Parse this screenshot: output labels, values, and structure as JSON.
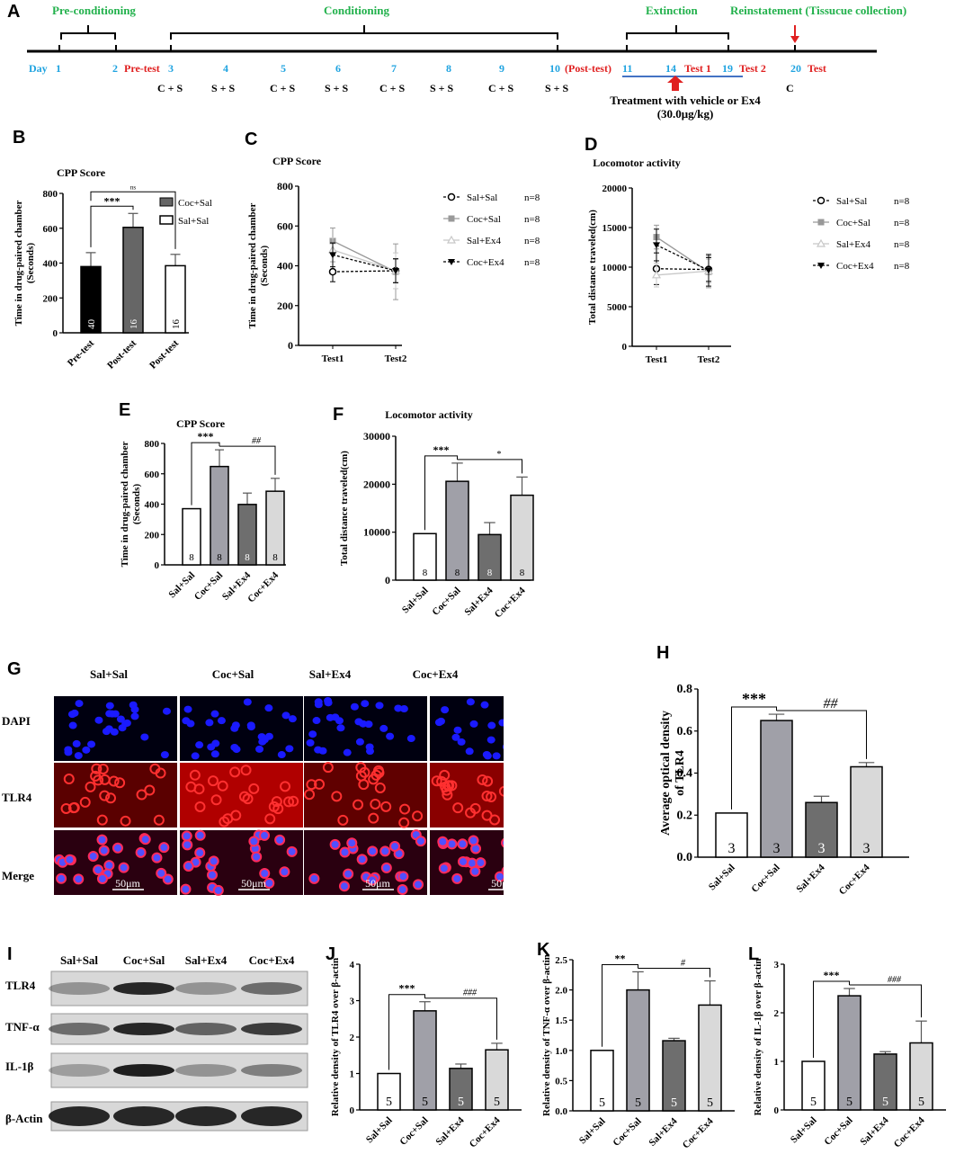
{
  "panels": {
    "A": "A",
    "B": "B",
    "C": "C",
    "D": "D",
    "E": "E",
    "F": "F",
    "G": "G",
    "H": "H",
    "I": "I",
    "J": "J",
    "K": "K",
    "L": "L"
  },
  "timeline": {
    "phases": [
      {
        "id": "pre",
        "label": "Pre-conditioning"
      },
      {
        "id": "cond",
        "label": "Conditioning"
      },
      {
        "id": "ext",
        "label": "Extinction"
      },
      {
        "id": "reinst",
        "label": "Reinstatement (Tissucue collection)"
      }
    ],
    "day_label": "Day",
    "days": [
      "1",
      "2",
      "3",
      "4",
      "5",
      "6",
      "7",
      "8",
      "9",
      "10",
      "11",
      "14",
      "19",
      "20"
    ],
    "events": {
      "pretest": "Pre-test",
      "posttest": "(Post-test)",
      "test1": "Test 1",
      "test2": "Test 2",
      "test": "Test"
    },
    "pairings": [
      "C + S",
      "S + S",
      "C + S",
      "S + S",
      "C + S",
      "S + S",
      "C + S",
      "S + S"
    ],
    "day20_pair": "C",
    "treatment_line1": "Treatment with vehicle or Ex4",
    "treatment_line2": "(30.0μg/kg)",
    "colors": {
      "green": "#22b14c",
      "blue": "#1fa3e0",
      "red": "#e02020",
      "bar": "#4472c4"
    }
  },
  "images": {
    "G": {
      "columns": [
        "Sal+Sal",
        "Coc+Sal",
        "Sal+Ex4",
        "Coc+Ex4"
      ],
      "rows": [
        "DAPI",
        "TLR4",
        "Merge"
      ],
      "scalebar": "50μm"
    },
    "I": {
      "columns": [
        "Sal+Sal",
        "Coc+Sal",
        "Sal+Ex4",
        "Coc+Ex4"
      ],
      "rows": [
        "TLR4",
        "TNF-α",
        "IL-1β",
        "β-Actin"
      ]
    }
  },
  "chart_data": [
    {
      "panel": "B",
      "type": "bar",
      "title": "CPP Score",
      "ylabel": "Time in drug-paired chamber (Seconds)",
      "categories": [
        "Pre-test",
        "Post-test",
        "Post-test"
      ],
      "values": [
        380,
        605,
        385
      ],
      "errors": [
        80,
        80,
        65
      ],
      "n": [
        "40",
        "16",
        "16"
      ],
      "colors": [
        "#000000",
        "#666666",
        "#ffffff"
      ],
      "ylim": [
        0,
        800
      ],
      "yticks": [
        0,
        200,
        400,
        600,
        800
      ],
      "legend": [
        "Coc+Sal",
        "Sal+Sal"
      ],
      "sig": [
        "***",
        "ns"
      ]
    },
    {
      "panel": "C",
      "type": "line",
      "title": "CPP Score",
      "ylabel": "Time in drug-paired chamber (Seconds)",
      "x": [
        "Test1",
        "Test2"
      ],
      "ylim": [
        0,
        800
      ],
      "yticks": [
        0,
        200,
        400,
        600,
        800
      ],
      "series": [
        {
          "name": "Sal+Sal",
          "n": "n=8",
          "values": [
            370,
            375
          ],
          "errors": [
            50,
            60
          ]
        },
        {
          "name": "Coc+Sal",
          "n": "n=8",
          "values": [
            525,
            370
          ],
          "errors": [
            65,
            140
          ]
        },
        {
          "name": "Sal+Ex4",
          "n": "n=8",
          "values": [
            480,
            375
          ],
          "errors": [
            60,
            90
          ]
        },
        {
          "name": "Coc+Ex4",
          "n": "n=8",
          "values": [
            455,
            375
          ],
          "errors": [
            60,
            60
          ]
        }
      ]
    },
    {
      "panel": "D",
      "type": "line",
      "title": "Locomotor activity",
      "ylabel": "Total distance traveled(cm)",
      "x": [
        "Test1",
        "Test2"
      ],
      "ylim": [
        0,
        20000
      ],
      "yticks": [
        0,
        5000,
        10000,
        15000,
        20000
      ],
      "series": [
        {
          "name": "Sal+Sal",
          "n": "n=8",
          "values": [
            9800,
            9700
          ],
          "errors": [
            2000,
            1500
          ]
        },
        {
          "name": "Coc+Sal",
          "n": "n=8",
          "values": [
            13800,
            9400
          ],
          "errors": [
            1500,
            2000
          ]
        },
        {
          "name": "Sal+Ex4",
          "n": "n=8",
          "values": [
            9000,
            9500
          ],
          "errors": [
            1500,
            1500
          ]
        },
        {
          "name": "Coc+Ex4",
          "n": "n=8",
          "values": [
            12800,
            9600
          ],
          "errors": [
            2000,
            2000
          ]
        }
      ]
    },
    {
      "panel": "E",
      "type": "bar",
      "title": "CPP Score",
      "ylabel": "Time in drug-paired chamber (Seconds)",
      "categories": [
        "Sal+Sal",
        "Coc+Sal",
        "Sal+Ex4",
        "Coc+Ex4"
      ],
      "values": [
        370,
        648,
        398,
        485
      ],
      "errors": [
        0,
        110,
        75,
        85
      ],
      "n": [
        "8",
        "8",
        "8",
        "8"
      ],
      "colors": [
        "#ffffff",
        "#a0a0a8",
        "#6e6e6e",
        "#d9d9d9"
      ],
      "ylim": [
        0,
        800
      ],
      "yticks": [
        0,
        200,
        400,
        600,
        800
      ],
      "sig": [
        "***",
        "##"
      ]
    },
    {
      "panel": "F",
      "type": "bar",
      "title": "Locomotor activity",
      "ylabel": "Total distance traveled(cm)",
      "categories": [
        "Sal+Sal",
        "Coc+Sal",
        "Sal+Ex4",
        "Coc+Ex4"
      ],
      "values": [
        9700,
        20600,
        9500,
        17700
      ],
      "errors": [
        0,
        3800,
        2500,
        3800
      ],
      "n": [
        "8",
        "8",
        "8",
        "8"
      ],
      "colors": [
        "#ffffff",
        "#a0a0a8",
        "#6e6e6e",
        "#d9d9d9"
      ],
      "ylim": [
        0,
        30000
      ],
      "yticks": [
        0,
        10000,
        20000,
        30000
      ],
      "sig": [
        "***",
        "*"
      ]
    },
    {
      "panel": "H",
      "type": "bar",
      "title": "",
      "ylabel": "Average optical density of TLR4",
      "categories": [
        "Sal+Sal",
        "Coc+Sal",
        "Sal+Ex4",
        "Coc+Ex4"
      ],
      "values": [
        0.21,
        0.65,
        0.26,
        0.43
      ],
      "errors": [
        0,
        0.03,
        0.03,
        0.02
      ],
      "n": [
        "3",
        "3",
        "3",
        "3"
      ],
      "colors": [
        "#ffffff",
        "#a0a0a8",
        "#6e6e6e",
        "#d9d9d9"
      ],
      "ylim": [
        0,
        0.8
      ],
      "yticks": [
        "0.0",
        "0.2",
        "0.4",
        "0.6",
        "0.8"
      ],
      "sig": [
        "***",
        "##"
      ]
    },
    {
      "panel": "J",
      "type": "bar",
      "title": "",
      "ylabel": "Relative density of TLR4 over β-actin",
      "categories": [
        "Sal+Sal",
        "Coc+Sal",
        "Sal+Ex4",
        "Coc+Ex4"
      ],
      "values": [
        1.0,
        2.72,
        1.14,
        1.65
      ],
      "errors": [
        0,
        0.25,
        0.12,
        0.18
      ],
      "n": [
        "5",
        "5",
        "5",
        "5"
      ],
      "colors": [
        "#ffffff",
        "#a0a0a8",
        "#6e6e6e",
        "#d9d9d9"
      ],
      "ylim": [
        0,
        4
      ],
      "yticks": [
        "0",
        "1",
        "2",
        "3",
        "4"
      ],
      "sig": [
        "***",
        "###"
      ]
    },
    {
      "panel": "K",
      "type": "bar",
      "title": "",
      "ylabel": "Relative density of TNF-α over β-actin",
      "categories": [
        "Sal+Sal",
        "Coc+Sal",
        "Sal+Ex4",
        "Coc+Ex4"
      ],
      "values": [
        1.0,
        2.0,
        1.16,
        1.75
      ],
      "errors": [
        0,
        0.3,
        0.04,
        0.4
      ],
      "n": [
        "5",
        "5",
        "5",
        "5"
      ],
      "colors": [
        "#ffffff",
        "#a0a0a8",
        "#6e6e6e",
        "#d9d9d9"
      ],
      "ylim": [
        0,
        2.5
      ],
      "yticks": [
        "0.0",
        "0.5",
        "1.0",
        "1.5",
        "2.0",
        "2.5"
      ],
      "sig": [
        "**",
        "#"
      ]
    },
    {
      "panel": "L",
      "type": "bar",
      "title": "",
      "ylabel": "Relative density of IL-1β over β-actin",
      "categories": [
        "Sal+Sal",
        "Coc+Sal",
        "Sal+Ex4",
        "Coc+Ex4"
      ],
      "values": [
        1.0,
        2.35,
        1.15,
        1.38
      ],
      "errors": [
        0,
        0.15,
        0.05,
        0.45
      ],
      "n": [
        "5",
        "5",
        "5",
        "5"
      ],
      "colors": [
        "#ffffff",
        "#a0a0a8",
        "#6e6e6e",
        "#d9d9d9"
      ],
      "ylim": [
        0,
        3
      ],
      "yticks": [
        "0",
        "1",
        "2",
        "3"
      ],
      "sig": [
        "***",
        "###"
      ]
    }
  ]
}
